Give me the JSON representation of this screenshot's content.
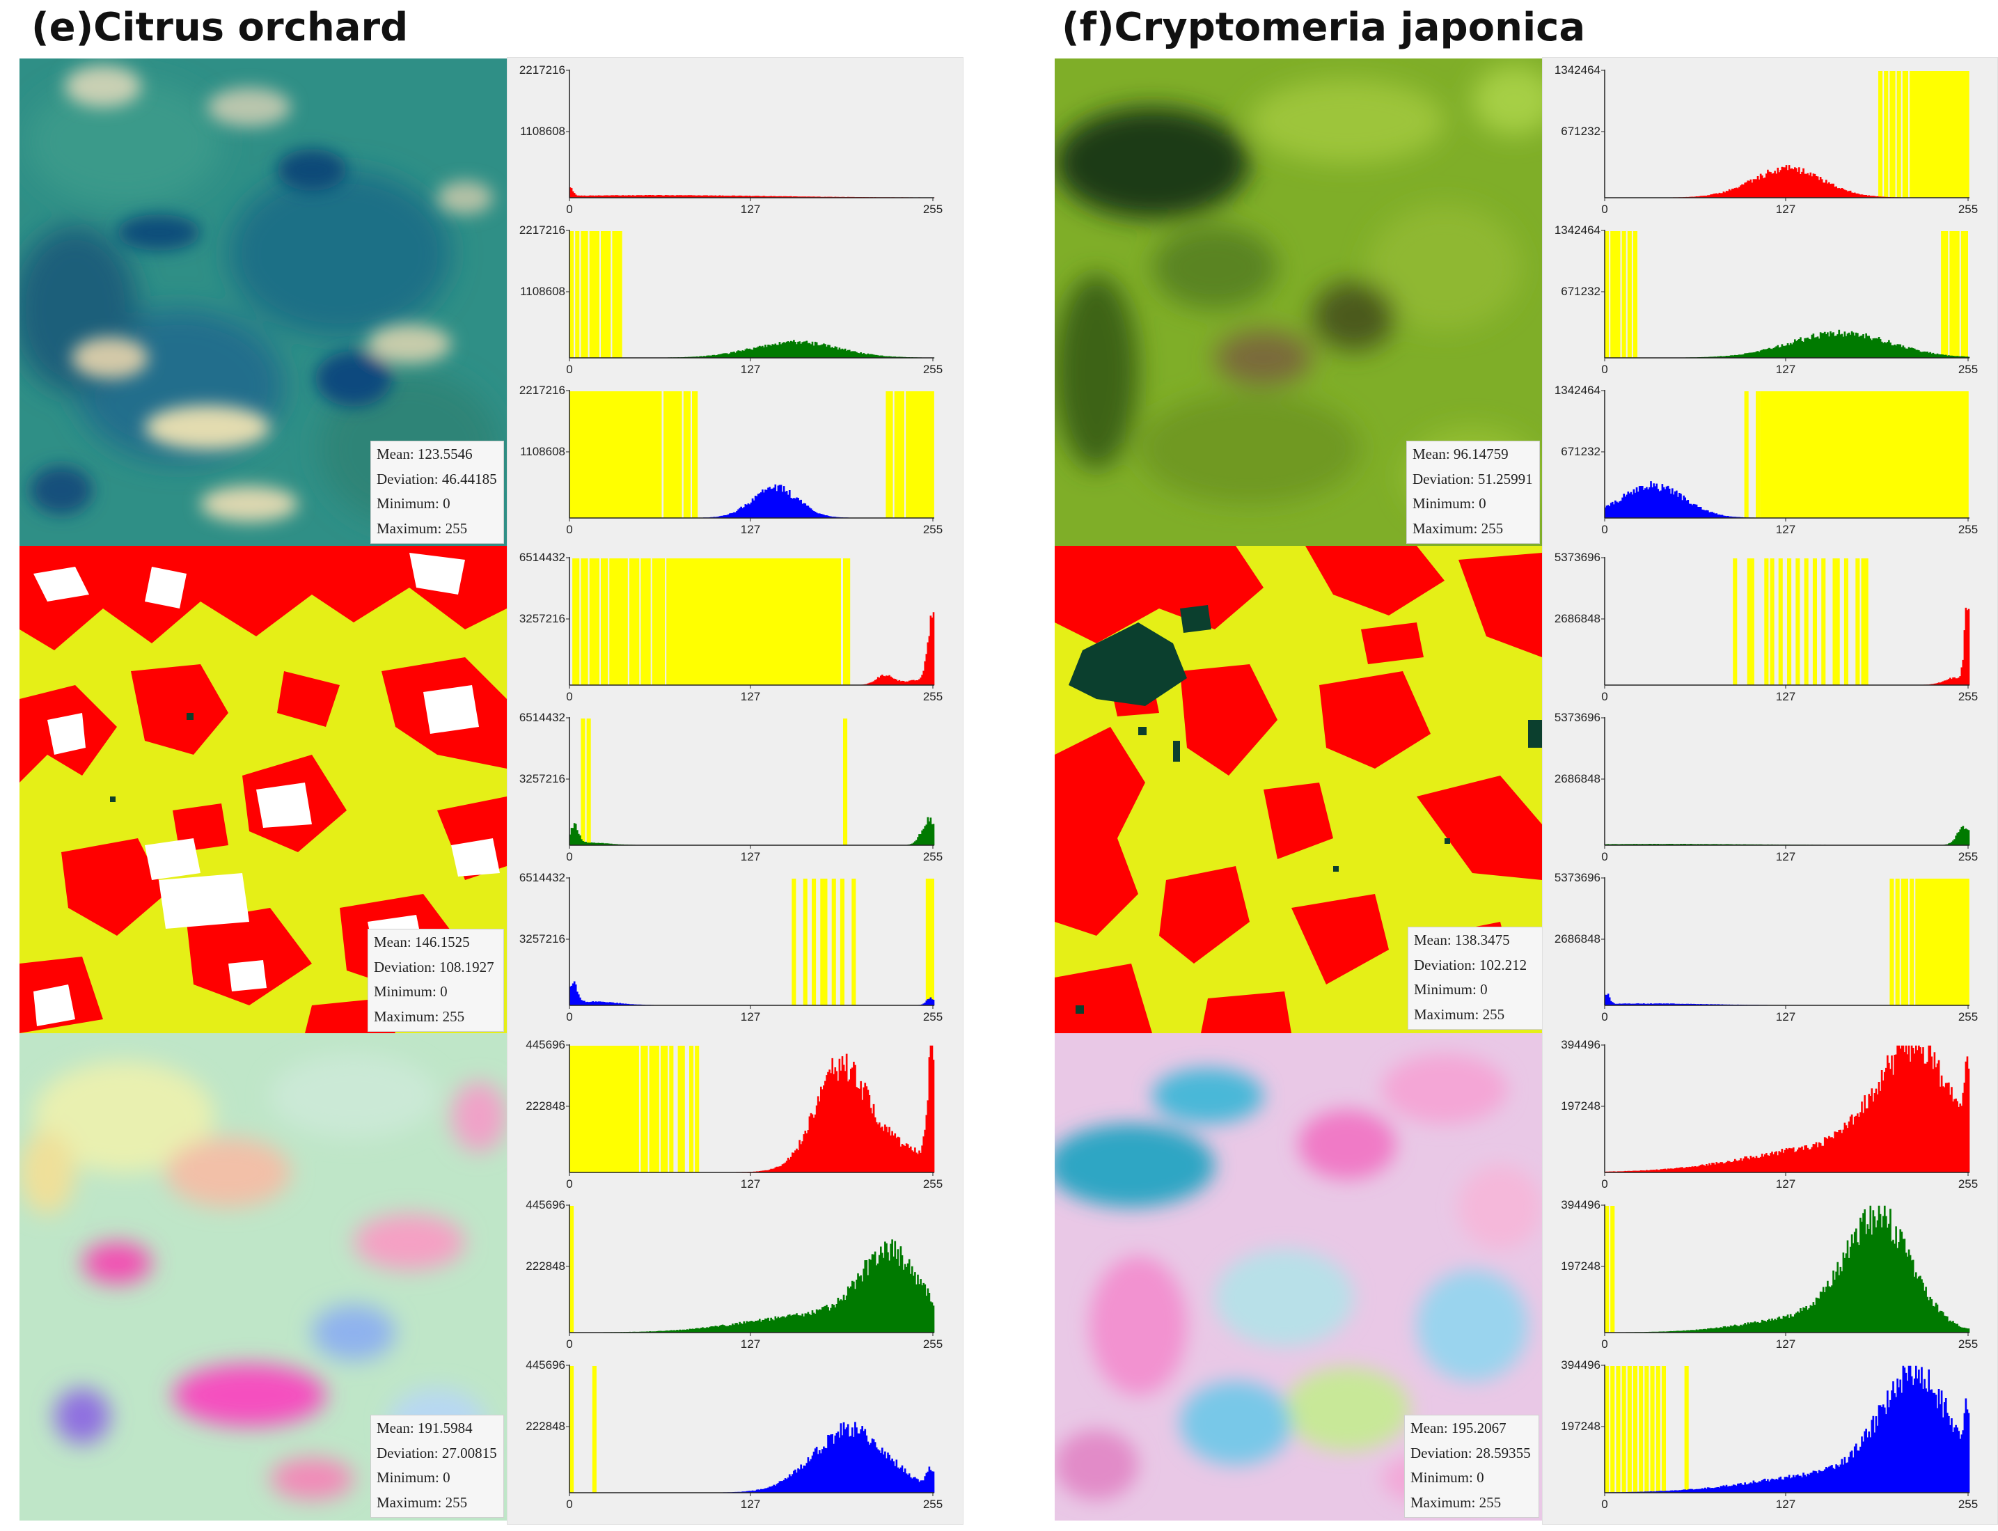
{
  "panels": [
    {
      "title": "(e)Citrus orchard",
      "rows": [
        {
          "image": "rgb-aerial-photo",
          "stats": {
            "mean": "Mean: 123.5546",
            "deviation": "Deviation: 46.44185",
            "minimum": "Minimum: 0",
            "maximum": "Maximum: 255"
          }
        },
        {
          "image": "classified-map",
          "stats": {
            "mean": "Mean: 146.1525",
            "deviation": "Deviation: 108.1927",
            "minimum": "Minimum: 0",
            "maximum": "Maximum: 255"
          }
        },
        {
          "image": "enhanced-color-image",
          "stats": {
            "mean": "Mean: 191.5984",
            "deviation": "Deviation: 27.00815",
            "minimum": "Minimum: 0",
            "maximum": "Maximum: 255"
          }
        }
      ]
    },
    {
      "title": "(f)Cryptomeria japonica",
      "rows": [
        {
          "image": "rgb-aerial-photo",
          "stats": {
            "mean": "Mean: 96.14759",
            "deviation": "Deviation: 51.25991",
            "minimum": "Minimum: 0",
            "maximum": "Maximum: 255"
          }
        },
        {
          "image": "classified-map",
          "stats": {
            "mean": "Mean: 138.3475",
            "deviation": "Deviation: 102.212",
            "minimum": "Minimum: 0",
            "maximum": "Maximum: 255"
          }
        },
        {
          "image": "enhanced-color-image",
          "stats": {
            "mean": "Mean: 195.2067",
            "deviation": "Deviation: 28.59355",
            "minimum": "Minimum: 0",
            "maximum": "Maximum: 255"
          }
        }
      ]
    }
  ],
  "colors": {
    "red": "#ff0000",
    "green": "#007a00",
    "blue": "#0000ff",
    "highlight": "#ffff00",
    "panel_bg": "#efefef"
  },
  "chart_data": [
    {
      "type": "area",
      "panel": "(e)Citrus orchard",
      "row": 1,
      "channel": "red",
      "xlim": [
        0,
        255
      ],
      "ylim": [
        0,
        2217216
      ],
      "yticks": [
        "2217216",
        "1108608"
      ],
      "xticks": [
        "0",
        "127",
        "255"
      ],
      "peaks": [
        {
          "x": 0,
          "y": 140000,
          "width": 2
        },
        {
          "x": 60,
          "y": 40000,
          "width": 80
        }
      ],
      "highlight_bands": []
    },
    {
      "type": "area",
      "panel": "(e)Citrus orchard",
      "row": 1,
      "channel": "green",
      "xlim": [
        0,
        255
      ],
      "ylim": [
        0,
        2217216
      ],
      "yticks": [
        "2217216",
        "1108608"
      ],
      "xticks": [
        "0",
        "127",
        "255"
      ],
      "peaks": [
        {
          "x": 158,
          "y": 270000,
          "width": 30
        }
      ],
      "highlight_bands": [
        [
          0,
          2
        ],
        [
          4,
          6
        ],
        [
          8,
          12
        ],
        [
          14,
          20
        ],
        [
          22,
          28
        ],
        [
          30,
          36
        ]
      ]
    },
    {
      "type": "area",
      "panel": "(e)Citrus orchard",
      "row": 1,
      "channel": "blue",
      "xlim": [
        0,
        255
      ],
      "ylim": [
        0,
        2217216
      ],
      "yticks": [
        "2217216",
        "1108608"
      ],
      "xticks": [
        "0",
        "127",
        "255"
      ],
      "peaks": [
        {
          "x": 144,
          "y": 520000,
          "width": 16
        }
      ],
      "highlight_bands": [
        [
          0,
          64
        ],
        [
          66,
          78
        ],
        [
          80,
          84
        ],
        [
          86,
          89
        ],
        [
          222,
          226
        ],
        [
          228,
          234
        ],
        [
          236,
          255
        ]
      ]
    },
    {
      "type": "area",
      "panel": "(e)Citrus orchard",
      "row": 2,
      "channel": "red",
      "xlim": [
        0,
        255
      ],
      "ylim": [
        0,
        6514432
      ],
      "yticks": [
        "6514432",
        "3257216"
      ],
      "xticks": [
        "0",
        "127",
        "255"
      ],
      "peaks": [
        {
          "x": 221,
          "y": 500000,
          "width": 6
        },
        {
          "x": 254,
          "y": 3400000,
          "width": 3
        },
        {
          "x": 244,
          "y": 250000,
          "width": 9
        }
      ],
      "highlight_bands": [
        [
          2,
          6
        ],
        [
          8,
          12
        ],
        [
          14,
          20
        ],
        [
          22,
          26
        ],
        [
          28,
          40
        ],
        [
          42,
          48
        ],
        [
          50,
          56
        ],
        [
          58,
          66
        ],
        [
          68,
          190
        ],
        [
          192,
          196
        ]
      ]
    },
    {
      "type": "area",
      "panel": "(e)Citrus orchard",
      "row": 2,
      "channel": "green",
      "xlim": [
        0,
        255
      ],
      "ylim": [
        0,
        6514432
      ],
      "yticks": [
        "6514432",
        "3257216"
      ],
      "xticks": [
        "0",
        "127",
        "255"
      ],
      "peaks": [
        {
          "x": 3,
          "y": 900000,
          "width": 3
        },
        {
          "x": 12,
          "y": 120000,
          "width": 15
        },
        {
          "x": 252,
          "y": 1300000,
          "width": 5
        }
      ],
      "highlight_bands": [
        [
          8,
          10
        ],
        [
          12,
          14
        ],
        [
          192,
          194
        ]
      ]
    },
    {
      "type": "area",
      "panel": "(e)Citrus orchard",
      "row": 2,
      "channel": "blue",
      "xlim": [
        0,
        255
      ],
      "ylim": [
        0,
        6514432
      ],
      "yticks": [
        "6514432",
        "3257216"
      ],
      "xticks": [
        "0",
        "127",
        "255"
      ],
      "peaks": [
        {
          "x": 2,
          "y": 1000000,
          "width": 3
        },
        {
          "x": 15,
          "y": 180000,
          "width": 18
        },
        {
          "x": 253,
          "y": 350000,
          "width": 3
        }
      ],
      "highlight_bands": [
        [
          156,
          158
        ],
        [
          164,
          166
        ],
        [
          170,
          172
        ],
        [
          176,
          180
        ],
        [
          184,
          186
        ],
        [
          190,
          192
        ],
        [
          198,
          200
        ],
        [
          250,
          255
        ]
      ]
    },
    {
      "type": "area",
      "panel": "(e)Citrus orchard",
      "row": 3,
      "channel": "red",
      "xlim": [
        0,
        255
      ],
      "ylim": [
        0,
        445696
      ],
      "yticks": [
        "445696",
        "222848"
      ],
      "xticks": [
        "0",
        "127",
        "255"
      ],
      "peaks": [
        {
          "x": 189,
          "y": 300000,
          "width": 17
        },
        {
          "x": 254,
          "y": 400000,
          "width": 3
        },
        {
          "x": 215,
          "y": 110000,
          "width": 30
        }
      ],
      "highlight_bands": [
        [
          0,
          48
        ],
        [
          50,
          54
        ],
        [
          56,
          62
        ],
        [
          64,
          68
        ],
        [
          70,
          72
        ],
        [
          76,
          80
        ],
        [
          84,
          86
        ],
        [
          88,
          90
        ]
      ]
    },
    {
      "type": "area",
      "panel": "(e)Citrus orchard",
      "row": 3,
      "channel": "green",
      "xlim": [
        0,
        255
      ],
      "ylim": [
        0,
        445696
      ],
      "yticks": [
        "445696",
        "222848"
      ],
      "xticks": [
        "0",
        "127",
        "255"
      ],
      "peaks": [
        {
          "x": 225,
          "y": 250000,
          "width": 21
        },
        {
          "x": 175,
          "y": 60000,
          "width": 50
        }
      ],
      "highlight_bands": [
        [
          0,
          2
        ]
      ]
    },
    {
      "type": "area",
      "panel": "(e)Citrus orchard",
      "row": 3,
      "channel": "blue",
      "xlim": [
        0,
        255
      ],
      "ylim": [
        0,
        445696
      ],
      "yticks": [
        "445696",
        "222848"
      ],
      "xticks": [
        "0",
        "127",
        "255"
      ],
      "peaks": [
        {
          "x": 197,
          "y": 220000,
          "width": 26
        },
        {
          "x": 253,
          "y": 60000,
          "width": 3
        }
      ],
      "highlight_bands": [
        [
          0,
          2
        ],
        [
          16,
          18
        ]
      ]
    },
    {
      "type": "area",
      "panel": "(f)Cryptomeria japonica",
      "row": 1,
      "channel": "red",
      "xlim": [
        0,
        255
      ],
      "ylim": [
        0,
        1342464
      ],
      "yticks": [
        "1342464",
        "671232"
      ],
      "xticks": [
        "0",
        "127",
        "255"
      ],
      "peaks": [
        {
          "x": 128,
          "y": 300000,
          "width": 25
        }
      ],
      "highlight_bands": [
        [
          192,
          194
        ],
        [
          196,
          198
        ],
        [
          200,
          203
        ],
        [
          205,
          207
        ],
        [
          209,
          212
        ],
        [
          214,
          255
        ]
      ]
    },
    {
      "type": "area",
      "panel": "(f)Cryptomeria japonica",
      "row": 1,
      "channel": "green",
      "xlim": [
        0,
        255
      ],
      "ylim": [
        0,
        1342464
      ],
      "yticks": [
        "1342464",
        "671232"
      ],
      "xticks": [
        "0",
        "127",
        "255"
      ],
      "peaks": [
        {
          "x": 165,
          "y": 260000,
          "width": 35
        }
      ],
      "highlight_bands": [
        [
          0,
          2
        ],
        [
          4,
          10
        ],
        [
          12,
          14
        ],
        [
          16,
          18
        ],
        [
          20,
          22
        ],
        [
          236,
          240
        ],
        [
          242,
          248
        ],
        [
          250,
          254
        ]
      ]
    },
    {
      "type": "area",
      "panel": "(f)Cryptomeria japonica",
      "row": 1,
      "channel": "blue",
      "xlim": [
        0,
        255
      ],
      "ylim": [
        0,
        1342464
      ],
      "yticks": [
        "1342464",
        "671232"
      ],
      "xticks": [
        "0",
        "127",
        "255"
      ],
      "peaks": [
        {
          "x": 33,
          "y": 340000,
          "width": 22
        }
      ],
      "highlight_bands": [
        [
          98,
          100
        ],
        [
          106,
          108
        ],
        [
          109,
          255
        ]
      ]
    },
    {
      "type": "area",
      "panel": "(f)Cryptomeria japonica",
      "row": 2,
      "channel": "red",
      "xlim": [
        0,
        255
      ],
      "ylim": [
        0,
        5373696
      ],
      "yticks": [
        "5373696",
        "2686848"
      ],
      "xticks": [
        "0",
        "127",
        "255"
      ],
      "peaks": [
        {
          "x": 246,
          "y": 300000,
          "width": 8
        },
        {
          "x": 254,
          "y": 3000000,
          "width": 2
        }
      ],
      "highlight_bands": [
        [
          90,
          92
        ],
        [
          100,
          104
        ],
        [
          112,
          114
        ],
        [
          116,
          118
        ],
        [
          122,
          124
        ],
        [
          128,
          130
        ],
        [
          134,
          136
        ],
        [
          140,
          142
        ],
        [
          146,
          148
        ],
        [
          152,
          154
        ],
        [
          160,
          164
        ],
        [
          168,
          170
        ],
        [
          176,
          178
        ],
        [
          180,
          184
        ]
      ]
    },
    {
      "type": "area",
      "panel": "(f)Cryptomeria japonica",
      "row": 2,
      "channel": "green",
      "xlim": [
        0,
        255
      ],
      "ylim": [
        0,
        5373696
      ],
      "yticks": [
        "5373696",
        "2686848"
      ],
      "xticks": [
        "0",
        "127",
        "255"
      ],
      "peaks": [
        {
          "x": 252,
          "y": 750000,
          "width": 5
        },
        {
          "x": 40,
          "y": 45000,
          "width": 60
        }
      ],
      "highlight_bands": []
    },
    {
      "type": "area",
      "panel": "(f)Cryptomeria japonica",
      "row": 2,
      "channel": "blue",
      "xlim": [
        0,
        255
      ],
      "ylim": [
        0,
        5373696
      ],
      "yticks": [
        "5373696",
        "2686848"
      ],
      "xticks": [
        "0",
        "127",
        "255"
      ],
      "peaks": [
        {
          "x": 1,
          "y": 450000,
          "width": 2
        },
        {
          "x": 30,
          "y": 70000,
          "width": 40
        }
      ],
      "highlight_bands": [
        [
          200,
          202
        ],
        [
          204,
          206
        ],
        [
          208,
          212
        ],
        [
          214,
          216
        ],
        [
          218,
          255
        ]
      ]
    },
    {
      "type": "area",
      "panel": "(f)Cryptomeria japonica",
      "row": 3,
      "channel": "red",
      "xlim": [
        0,
        255
      ],
      "ylim": [
        0,
        394496
      ],
      "yticks": [
        "394496",
        "197248"
      ],
      "xticks": [
        "0",
        "127",
        "255"
      ],
      "peaks": [
        {
          "x": 217,
          "y": 340000,
          "width": 26
        },
        {
          "x": 165,
          "y": 80000,
          "width": 60
        },
        {
          "x": 254,
          "y": 260000,
          "width": 2
        }
      ],
      "highlight_bands": []
    },
    {
      "type": "area",
      "panel": "(f)Cryptomeria japonica",
      "row": 3,
      "channel": "green",
      "xlim": [
        0,
        255
      ],
      "ylim": [
        0,
        394496
      ],
      "yticks": [
        "394496",
        "197248"
      ],
      "xticks": [
        "0",
        "127",
        "255"
      ],
      "peaks": [
        {
          "x": 192,
          "y": 330000,
          "width": 23
        },
        {
          "x": 150,
          "y": 50000,
          "width": 45
        }
      ],
      "highlight_bands": [
        [
          0,
          2
        ],
        [
          4,
          6
        ]
      ]
    },
    {
      "type": "area",
      "panel": "(f)Cryptomeria japonica",
      "row": 3,
      "channel": "blue",
      "xlim": [
        0,
        255
      ],
      "ylim": [
        0,
        394496
      ],
      "yticks": [
        "394496",
        "197248"
      ],
      "xticks": [
        "0",
        "127",
        "255"
      ],
      "peaks": [
        {
          "x": 218,
          "y": 340000,
          "width": 24
        },
        {
          "x": 165,
          "y": 60000,
          "width": 55
        },
        {
          "x": 254,
          "y": 170000,
          "width": 2
        }
      ],
      "highlight_bands": [
        [
          0,
          2
        ],
        [
          4,
          6
        ],
        [
          8,
          10
        ],
        [
          12,
          14
        ],
        [
          16,
          18
        ],
        [
          20,
          22
        ],
        [
          24,
          26
        ],
        [
          28,
          30
        ],
        [
          32,
          34
        ],
        [
          36,
          38
        ],
        [
          40,
          42
        ],
        [
          56,
          58
        ]
      ]
    }
  ]
}
